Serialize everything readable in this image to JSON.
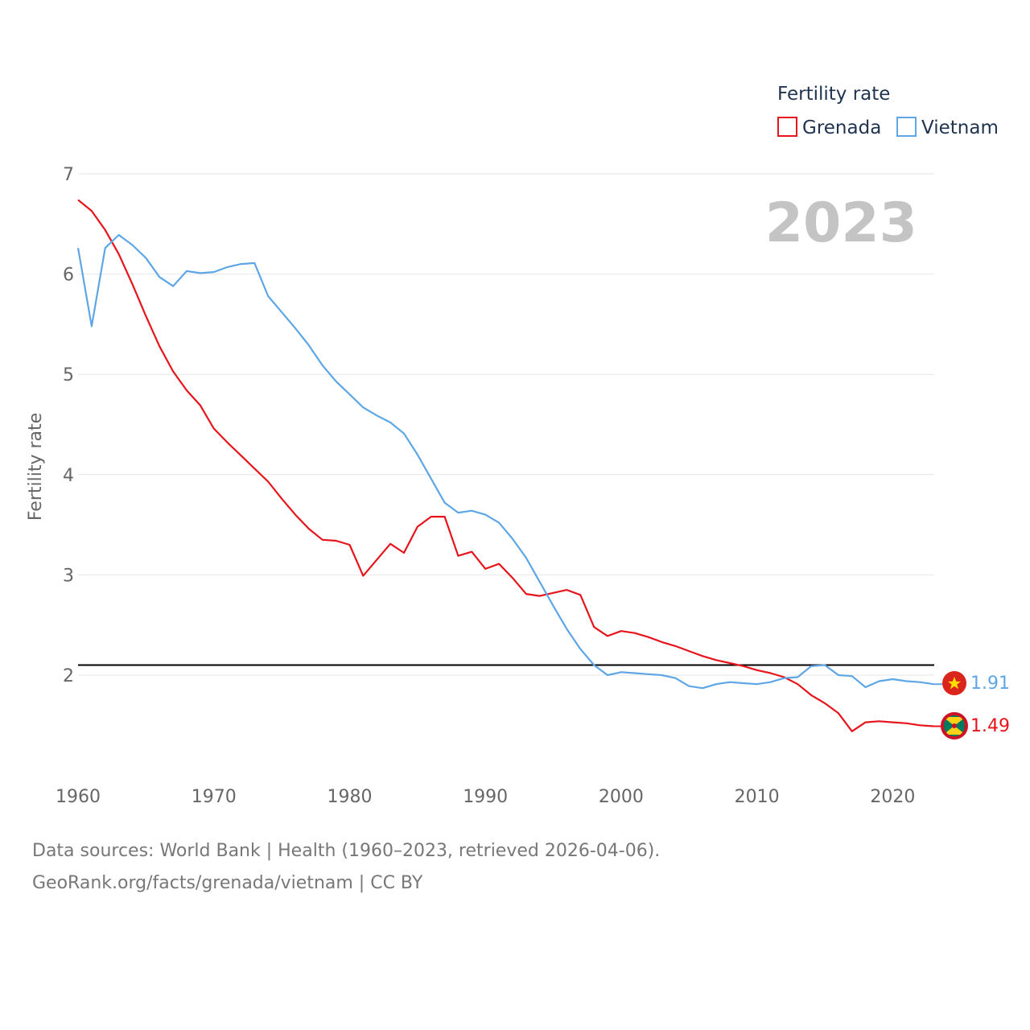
{
  "chart_data": {
    "type": "line",
    "title": "Fertility rate",
    "ylabel": "Fertility rate",
    "xlabel": "",
    "xlim": [
      1960,
      2023
    ],
    "ylim": [
      1.0,
      7.0
    ],
    "x_ticks": [
      1960,
      1970,
      1980,
      1990,
      2000,
      2010,
      2020
    ],
    "y_ticks": [
      2,
      3,
      4,
      5,
      6,
      7
    ],
    "year_label": "2023",
    "reference_line": 2.1,
    "legend": {
      "title": "Fertility rate",
      "position": "top-right"
    },
    "series": [
      {
        "name": "Grenada",
        "color": "#e8141b",
        "end_label": "1.49",
        "start_year": 1960,
        "values": [
          6.74,
          6.63,
          6.44,
          6.2,
          5.9,
          5.58,
          5.28,
          5.03,
          4.84,
          4.69,
          4.46,
          4.32,
          4.19,
          4.06,
          3.93,
          3.76,
          3.6,
          3.46,
          3.35,
          3.34,
          3.3,
          2.99,
          3.15,
          3.31,
          3.22,
          3.48,
          3.58,
          3.58,
          3.19,
          3.23,
          3.06,
          3.11,
          2.97,
          2.81,
          2.79,
          2.82,
          2.85,
          2.8,
          2.48,
          2.39,
          2.44,
          2.42,
          2.38,
          2.33,
          2.29,
          2.24,
          2.19,
          2.15,
          2.12,
          2.09,
          2.05,
          2.02,
          1.98,
          1.91,
          1.8,
          1.72,
          1.62,
          1.44,
          1.53,
          1.54,
          1.53,
          1.52,
          1.5,
          1.49
        ]
      },
      {
        "name": "Vietnam",
        "color": "#5ea6e5",
        "end_label": "1.91",
        "start_year": 1960,
        "values": [
          6.26,
          5.48,
          6.26,
          6.39,
          6.29,
          6.16,
          5.97,
          5.88,
          6.03,
          6.01,
          6.02,
          6.07,
          6.1,
          6.11,
          5.78,
          5.62,
          5.46,
          5.29,
          5.09,
          4.93,
          4.8,
          4.67,
          4.59,
          4.52,
          4.41,
          4.2,
          3.96,
          3.72,
          3.62,
          3.64,
          3.6,
          3.52,
          3.36,
          3.17,
          2.93,
          2.69,
          2.46,
          2.26,
          2.1,
          2.0,
          2.03,
          2.02,
          2.01,
          2.0,
          1.97,
          1.89,
          1.87,
          1.91,
          1.93,
          1.92,
          1.91,
          1.93,
          1.97,
          1.98,
          2.09,
          2.1,
          2.0,
          1.99,
          1.88,
          1.94,
          1.96,
          1.94,
          1.93,
          1.91
        ]
      }
    ]
  },
  "footer": {
    "line1": "Data sources: World Bank | Health (1960–2023, retrieved 2026-04-06).",
    "line2": "GeoRank.org/facts/grenada/vietnam | CC BY"
  }
}
